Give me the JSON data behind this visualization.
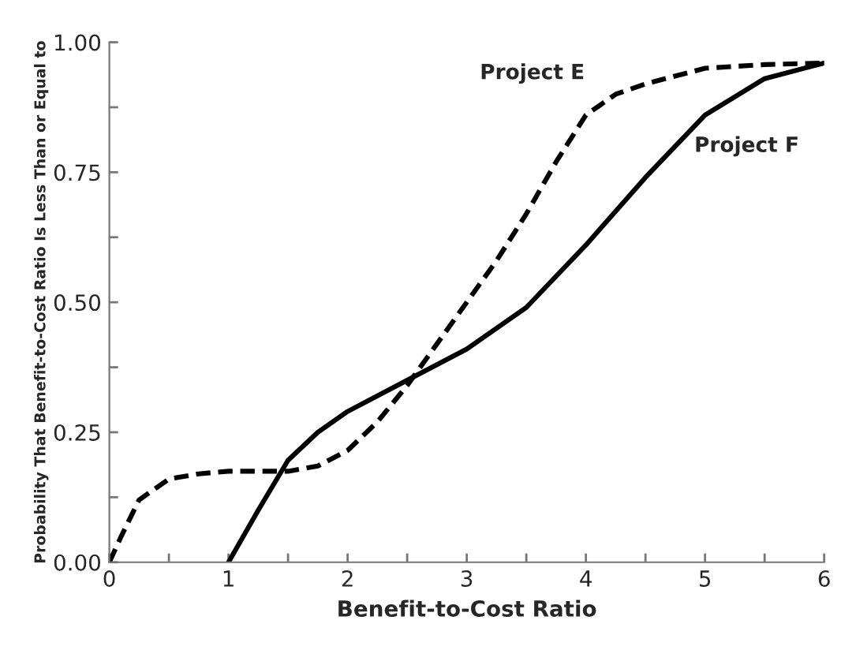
{
  "chart_data": {
    "type": "line",
    "xlabel": "Benefit-to-Cost Ratio",
    "ylabel": "Probability That Benefit-to-Cost Ratio Is Less Than or Equal to",
    "series": [
      {
        "name": "Project E",
        "color": "#000000",
        "line_style": "dashed",
        "x": [
          0,
          0.1,
          0.25,
          0.5,
          0.75,
          1,
          1.25,
          1.5,
          1.75,
          2,
          2.25,
          2.5,
          2.75,
          3,
          3.25,
          3.5,
          3.75,
          4,
          4.25,
          4.5,
          5,
          5.5,
          6
        ],
        "values": [
          0,
          0.05,
          0.12,
          0.16,
          0.17,
          0.175,
          0.175,
          0.175,
          0.185,
          0.215,
          0.27,
          0.34,
          0.42,
          0.5,
          0.58,
          0.67,
          0.77,
          0.86,
          0.9,
          0.92,
          0.95,
          0.957,
          0.96
        ]
      },
      {
        "name": "Project F",
        "color": "#000000",
        "line_style": "solid",
        "x": [
          1,
          1.25,
          1.5,
          1.75,
          2,
          2.5,
          3,
          3.5,
          4,
          4.5,
          5,
          5.5,
          6
        ],
        "values": [
          0,
          0.1,
          0.196,
          0.25,
          0.29,
          0.35,
          0.41,
          0.49,
          0.61,
          0.74,
          0.86,
          0.93,
          0.96
        ]
      }
    ],
    "xlim": [
      0,
      6
    ],
    "ylim": [
      0,
      1
    ],
    "xticks": [
      0,
      {
        "value": 0.5,
        "label": null
      },
      1,
      {
        "value": 1.5,
        "label": null
      },
      2,
      {
        "value": 2.5,
        "label": null
      },
      3,
      {
        "value": 3.5,
        "label": null
      },
      4,
      {
        "value": 4.5,
        "label": null
      },
      5,
      {
        "value": 5.5,
        "label": null
      },
      6
    ],
    "yticks": [
      {
        "value": 0,
        "label": "0.00"
      },
      {
        "value": 0.125,
        "label": null
      },
      {
        "value": 0.25,
        "label": "0.25"
      },
      {
        "value": 0.375,
        "label": null
      },
      {
        "value": 0.5,
        "label": "0.50"
      },
      {
        "value": 0.625,
        "label": null
      },
      {
        "value": 0.75,
        "label": "0.75"
      },
      {
        "value": 0.875,
        "label": null
      },
      {
        "value": 1,
        "label": "1.00"
      }
    ],
    "grid": false,
    "legend": false,
    "marker": "none"
  }
}
